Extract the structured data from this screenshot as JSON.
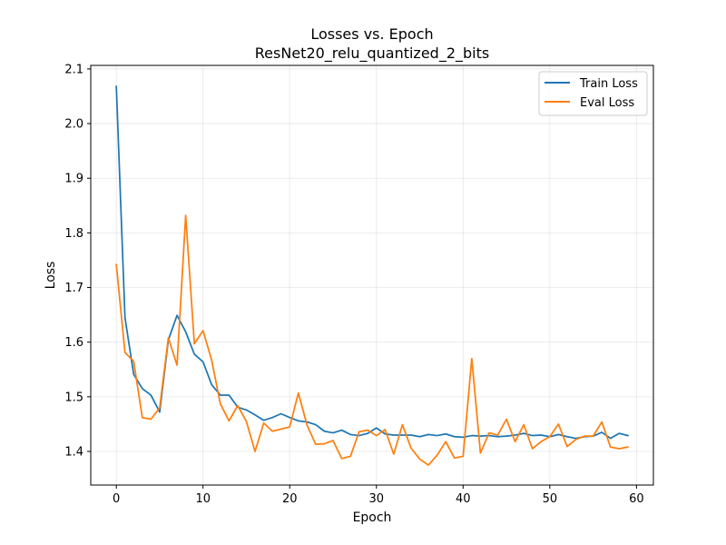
{
  "chart_data": {
    "type": "line",
    "title": "Losses vs. Epoch",
    "subtitle": "ResNet20_relu_quantized_2_bits",
    "xlabel": "Epoch",
    "ylabel": "Loss",
    "xlim": [
      -2.95,
      61.95
    ],
    "ylim": [
      1.3385,
      2.1065
    ],
    "xticks": [
      "0",
      "10",
      "20",
      "30",
      "40",
      "50",
      "60"
    ],
    "yticks": [
      "1.4",
      "1.5",
      "1.6",
      "1.7",
      "1.8",
      "1.9",
      "2.0",
      "2.1"
    ],
    "grid": true,
    "legend_position": "top-right",
    "series": [
      {
        "name": "Train Loss",
        "color": "#1f77b4",
        "x": [
          0,
          1,
          2,
          3,
          4,
          5,
          6,
          7,
          8,
          9,
          10,
          11,
          12,
          13,
          14,
          15,
          16,
          17,
          18,
          19,
          20,
          21,
          22,
          23,
          24,
          25,
          26,
          27,
          28,
          29,
          30,
          31,
          32,
          33,
          34,
          35,
          36,
          37,
          38,
          39,
          40,
          41,
          42,
          43,
          44,
          45,
          46,
          47,
          48,
          49,
          50,
          51,
          52,
          53,
          54,
          55,
          56,
          57,
          58,
          59
        ],
        "values": [
          2.068,
          1.645,
          1.541,
          1.515,
          1.503,
          1.472,
          1.604,
          1.649,
          1.619,
          1.578,
          1.564,
          1.522,
          1.503,
          1.503,
          1.481,
          1.476,
          1.467,
          1.457,
          1.462,
          1.469,
          1.462,
          1.456,
          1.454,
          1.449,
          1.437,
          1.434,
          1.439,
          1.431,
          1.429,
          1.433,
          1.443,
          1.432,
          1.43,
          1.43,
          1.43,
          1.427,
          1.431,
          1.429,
          1.432,
          1.427,
          1.426,
          1.429,
          1.428,
          1.429,
          1.427,
          1.428,
          1.43,
          1.433,
          1.429,
          1.43,
          1.427,
          1.431,
          1.427,
          1.424,
          1.427,
          1.428,
          1.435,
          1.424,
          1.433,
          1.429
        ]
      },
      {
        "name": "Eval Loss",
        "color": "#ff7f0e",
        "x": [
          0,
          1,
          2,
          3,
          4,
          5,
          6,
          7,
          8,
          9,
          10,
          11,
          12,
          13,
          14,
          15,
          16,
          17,
          18,
          19,
          20,
          21,
          22,
          23,
          24,
          25,
          26,
          27,
          28,
          29,
          30,
          31,
          32,
          33,
          34,
          35,
          36,
          37,
          38,
          39,
          40,
          41,
          42,
          43,
          44,
          45,
          46,
          47,
          48,
          49,
          50,
          51,
          52,
          53,
          54,
          55,
          56,
          57,
          58,
          59
        ],
        "values": [
          1.742,
          1.581,
          1.565,
          1.462,
          1.459,
          1.48,
          1.608,
          1.558,
          1.832,
          1.597,
          1.621,
          1.567,
          1.487,
          1.456,
          1.484,
          1.455,
          1.4,
          1.452,
          1.437,
          1.441,
          1.445,
          1.507,
          1.448,
          1.413,
          1.414,
          1.42,
          1.387,
          1.391,
          1.436,
          1.439,
          1.429,
          1.44,
          1.395,
          1.449,
          1.406,
          1.386,
          1.375,
          1.393,
          1.418,
          1.388,
          1.391,
          1.57,
          1.397,
          1.434,
          1.43,
          1.459,
          1.418,
          1.449,
          1.405,
          1.418,
          1.427,
          1.45,
          1.409,
          1.422,
          1.428,
          1.428,
          1.454,
          1.408,
          1.405,
          1.408
        ]
      }
    ]
  }
}
